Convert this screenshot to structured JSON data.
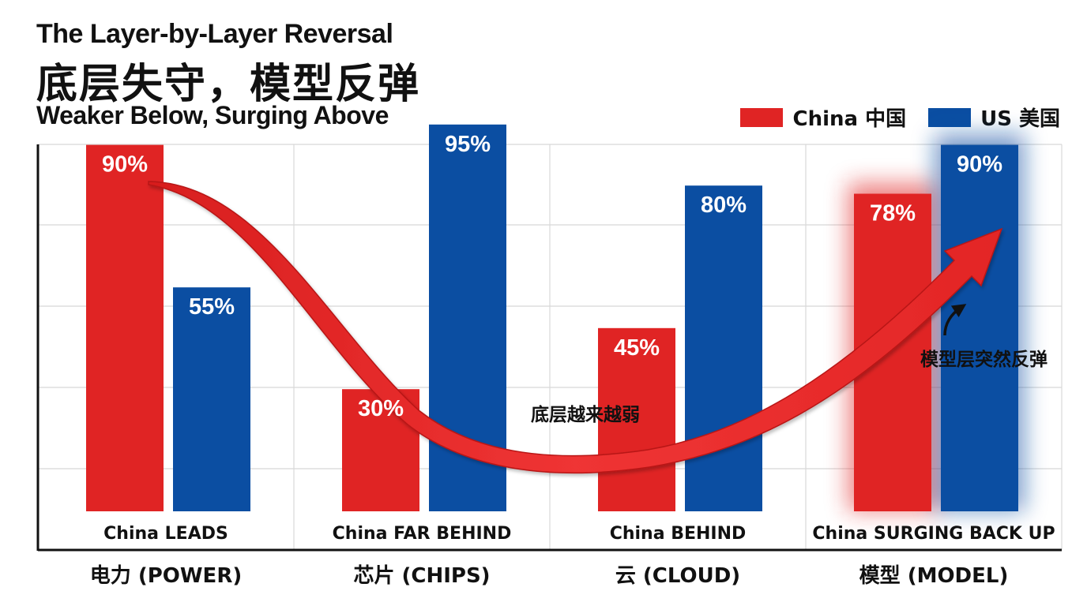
{
  "header": {
    "title_en": "The Layer-by-Layer Reversal",
    "title_zh": "底层失守，模型反弹",
    "subtitle": "Weaker Below, Surging Above"
  },
  "colors": {
    "china": "#e02424",
    "us": "#0b4ea2"
  },
  "chart_data": {
    "type": "bar",
    "title": "The Layer-by-Layer Reversal",
    "subtitle": "Weaker Below, Surging Above",
    "categories": [
      "电力 (POWER)",
      "芯片 (CHIPS)",
      "云 (CLOUD)",
      "模型 (MODEL)"
    ],
    "series": [
      {
        "name": "China 中国",
        "values": [
          90,
          30,
          45,
          78
        ],
        "labels": [
          "90%",
          "30%",
          "45%",
          "78%"
        ]
      },
      {
        "name": "US 美国",
        "values": [
          55,
          95,
          80,
          90
        ],
        "labels": [
          "55%",
          "95%",
          "80%",
          "90%"
        ]
      }
    ],
    "status_labels": [
      "China LEADS",
      "China FAR BEHIND",
      "China BEHIND",
      "China SURGING BACK UP"
    ],
    "annotations": [
      "底层越来越弱",
      "模型层突然反弹"
    ],
    "ylim": [
      0,
      100
    ],
    "grid": true,
    "legend": "top-right"
  }
}
